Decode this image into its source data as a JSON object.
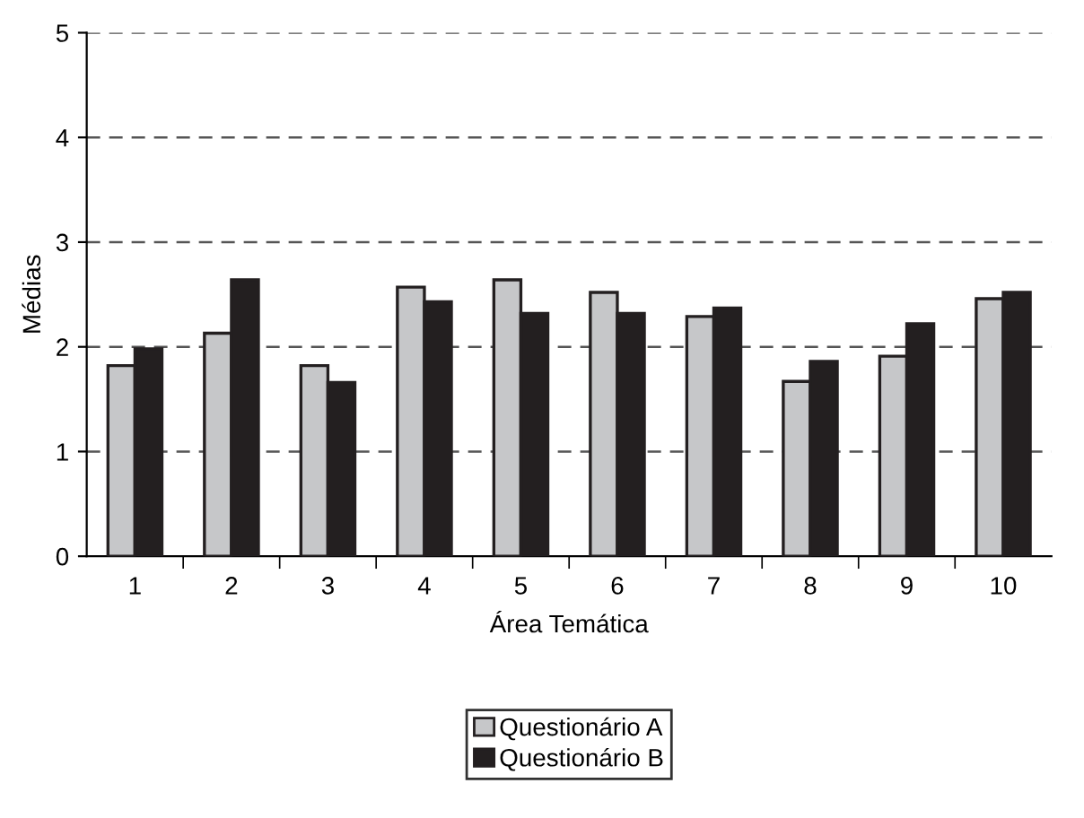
{
  "chart_data": {
    "type": "bar",
    "xlabel": "Área Temática",
    "ylabel": "Médias",
    "categories": [
      "1",
      "2",
      "3",
      "4",
      "5",
      "6",
      "7",
      "8",
      "9",
      "10"
    ],
    "series": [
      {
        "name": "Questionário A",
        "color": "#c6c7c9",
        "values": [
          1.82,
          2.13,
          1.82,
          2.57,
          2.64,
          2.52,
          2.29,
          1.67,
          1.91,
          2.46
        ]
      },
      {
        "name": "Questionário B",
        "color": "#231f20",
        "values": [
          1.98,
          2.64,
          1.66,
          2.43,
          2.32,
          2.32,
          2.37,
          1.86,
          2.22,
          2.52
        ]
      }
    ],
    "ylim": [
      0,
      5
    ],
    "yticks": [
      0,
      1,
      2,
      3,
      4,
      5
    ],
    "grid": "y",
    "legend": "bottom"
  }
}
